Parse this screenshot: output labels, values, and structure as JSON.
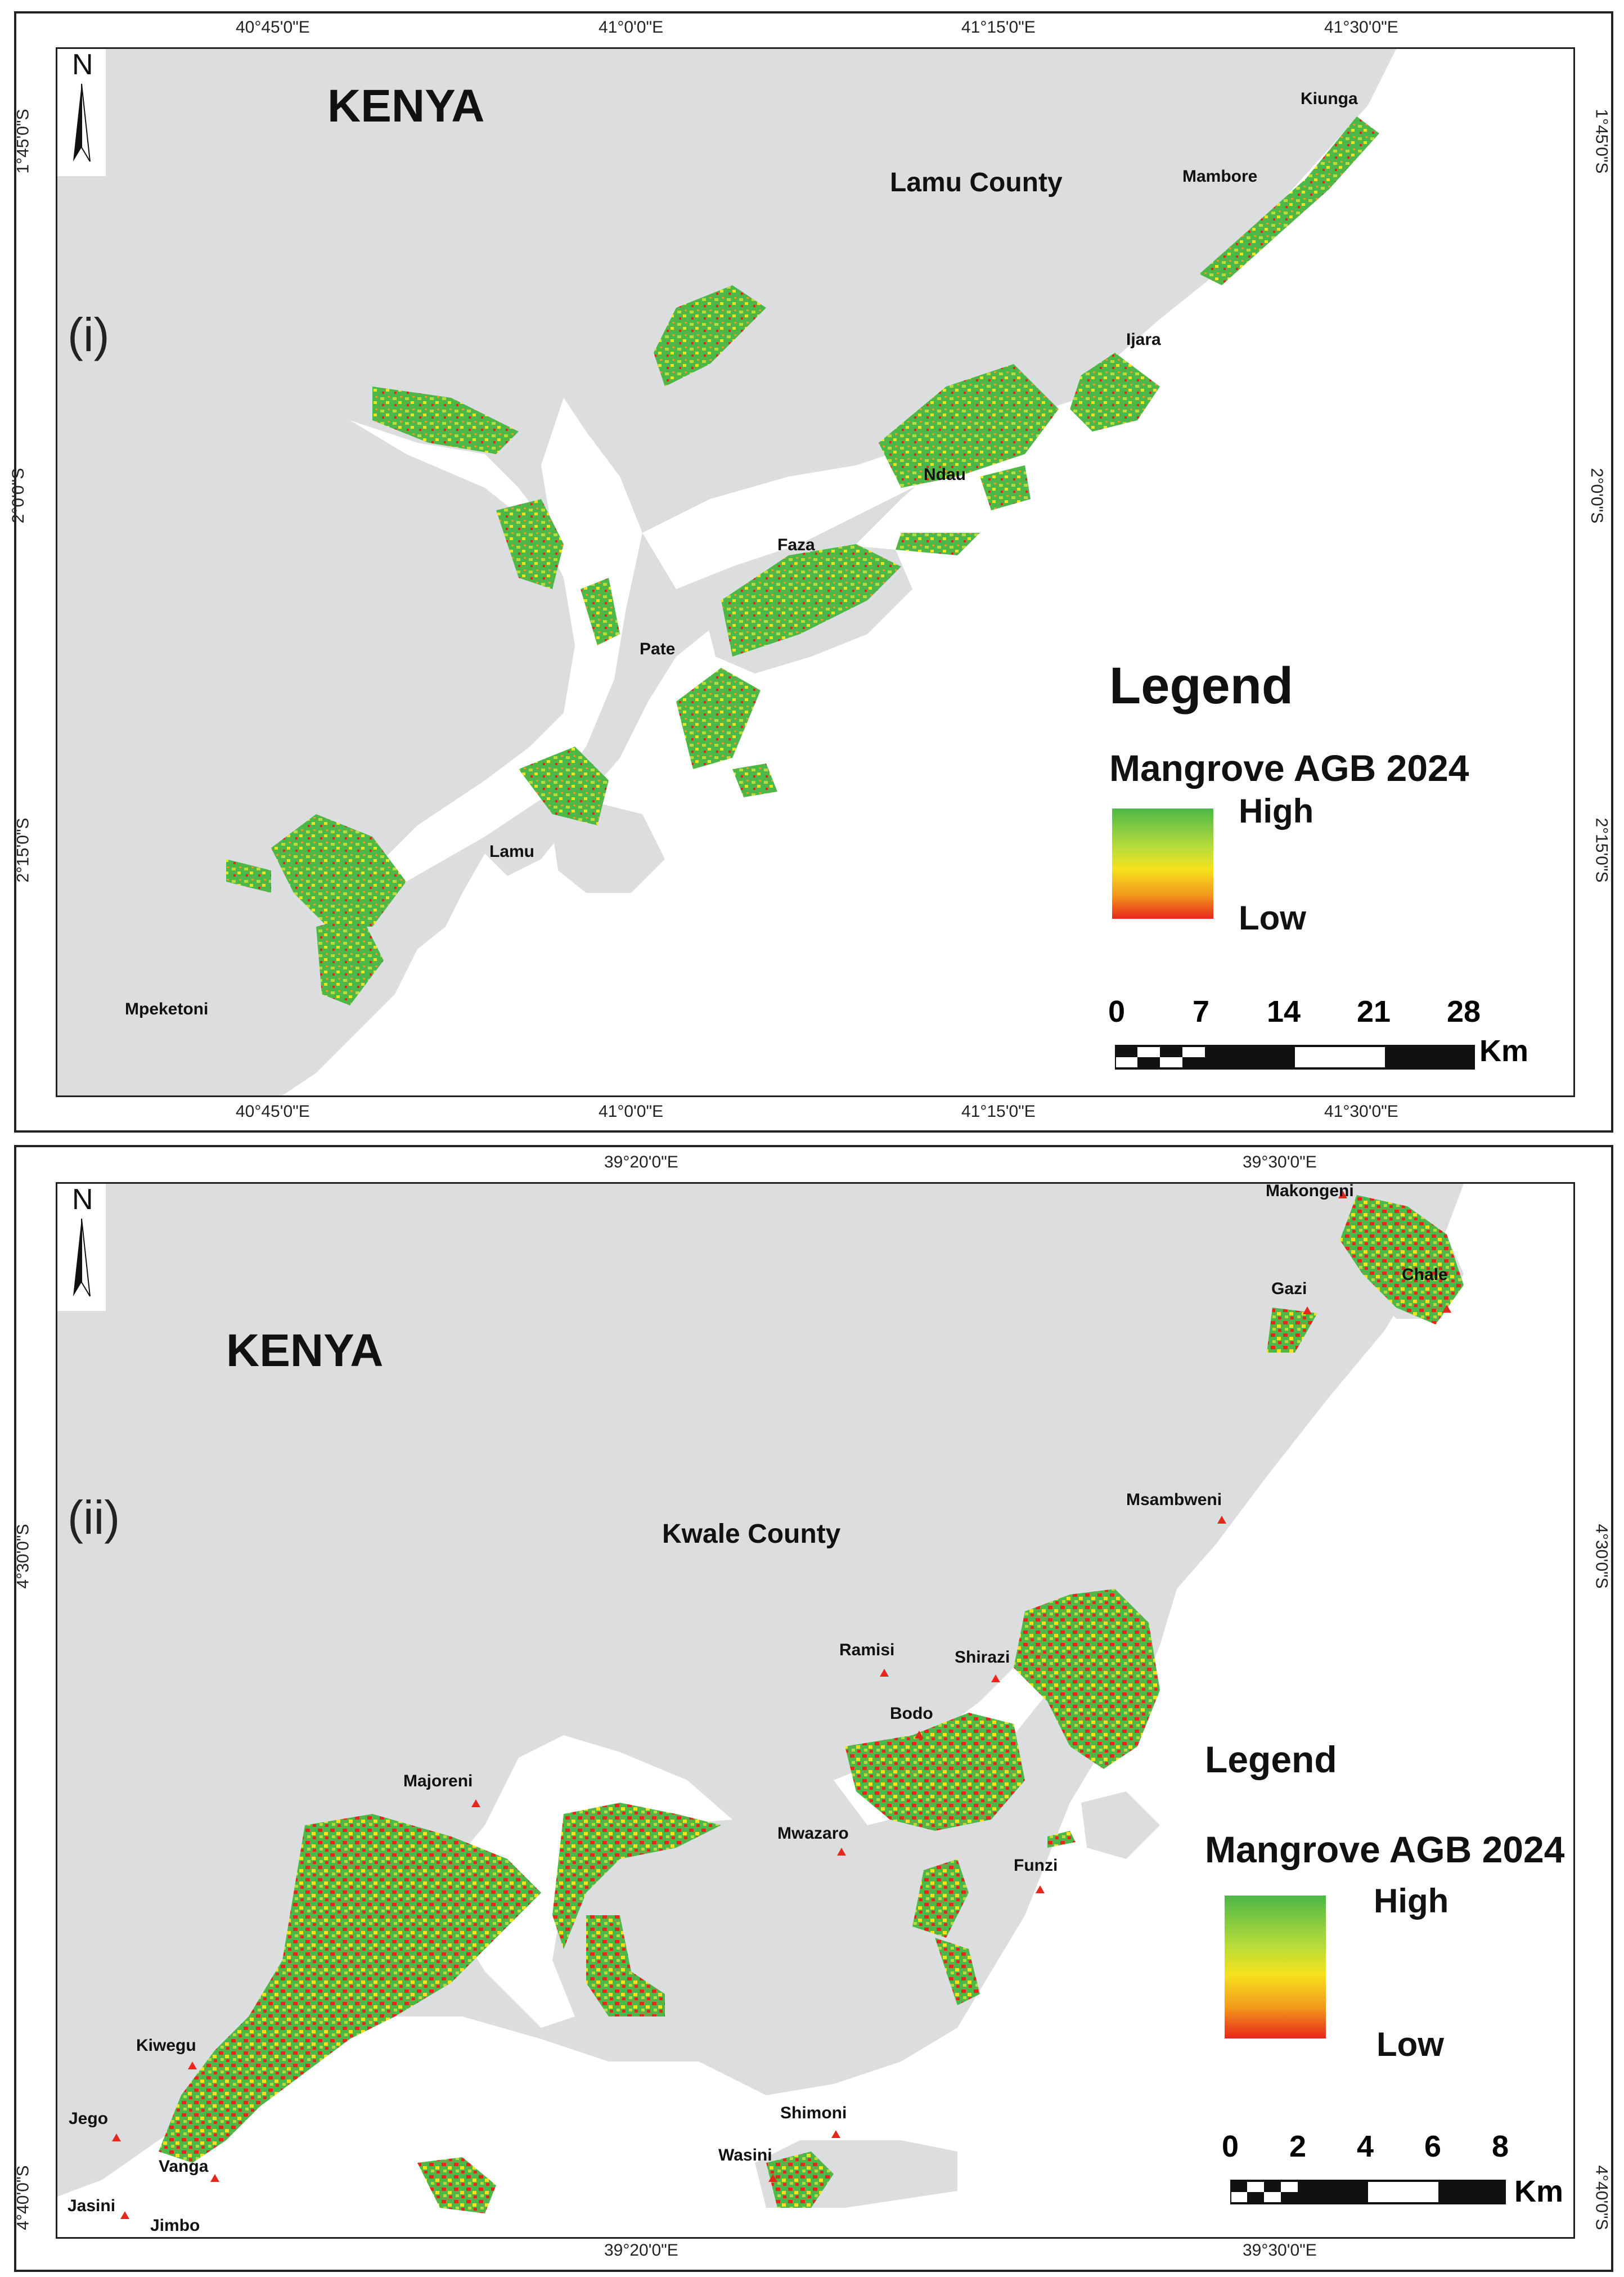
{
  "panel_1": {
    "id_label": "(i)",
    "country": "KENYA",
    "county": "Lamu County",
    "lon_ticks": [
      "40°45'0\"E",
      "41°0'0\"E",
      "41°15'0\"E",
      "41°30'0\"E"
    ],
    "lat_ticks": [
      "1°45'0\"S",
      "2°0'0\"S",
      "2°15'0\"S"
    ],
    "places": [
      "Kiunga",
      "Mambore",
      "Ijara",
      "Ndau",
      "Faza",
      "Pate",
      "Lamu",
      "Mpeketoni"
    ],
    "north": "N",
    "legend": {
      "title": "Legend",
      "subtitle": "Mangrove AGB 2024",
      "high": "High",
      "low": "Low"
    },
    "scale": {
      "ticks": [
        "0",
        "7",
        "14",
        "21",
        "28"
      ],
      "unit": "Km"
    }
  },
  "panel_2": {
    "id_label": "(ii)",
    "country": "KENYA",
    "county": "Kwale County",
    "lon_ticks": [
      "39°20'0\"E",
      "39°30'0\"E"
    ],
    "lat_ticks": [
      "4°30'0\"S",
      "4°40'0\"S"
    ],
    "places": [
      "Makongeni",
      "Gazi",
      "Chale",
      "Msambweni",
      "Ramisi",
      "Shirazi",
      "Bodo",
      "Majoreni",
      "Mwazaro",
      "Funzi",
      "Kiwegu",
      "Jego",
      "Vanga",
      "Jasini",
      "Jimbo",
      "Shimoni",
      "Wasini"
    ],
    "north": "N",
    "legend": {
      "title": "Legend",
      "subtitle": "Mangrove AGB 2024",
      "high": "High",
      "low": "Low"
    },
    "scale": {
      "ticks": [
        "0",
        "2",
        "4",
        "6",
        "8"
      ],
      "unit": "Km"
    }
  },
  "colors": {
    "land": "#dcdddf",
    "sea": "#ffffff",
    "agb_high": "#4db848",
    "agb_mid": "#f5e21b",
    "agb_low": "#e8261b"
  }
}
